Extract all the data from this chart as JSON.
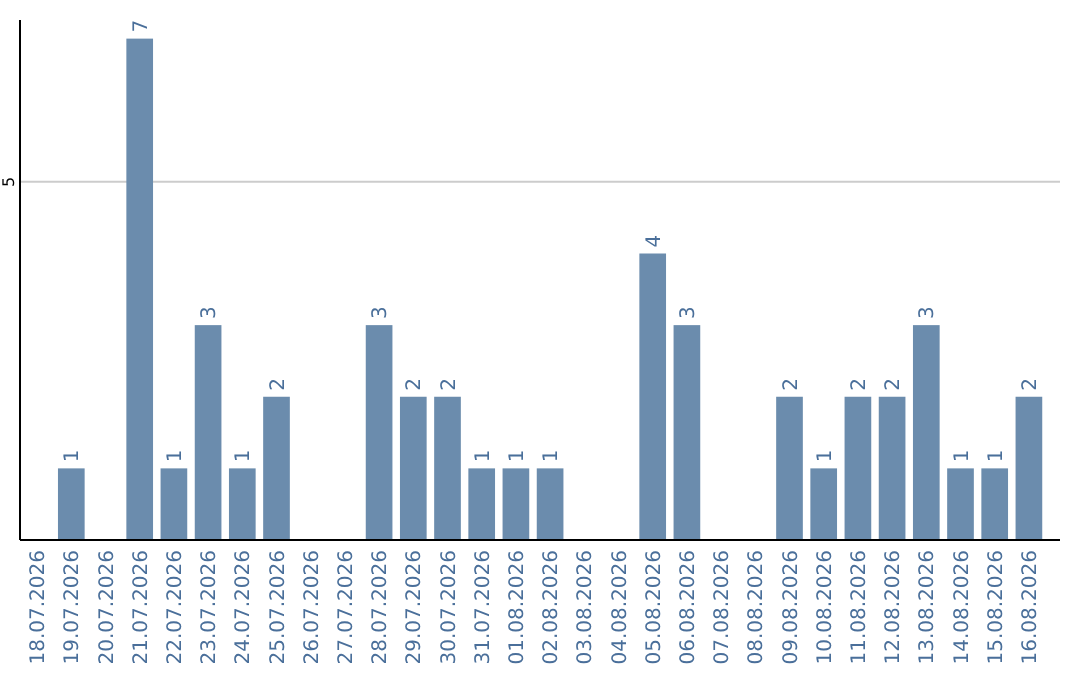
{
  "chart_data": {
    "type": "bar",
    "categories": [
      "18.07.2026",
      "19.07.2026",
      "20.07.2026",
      "21.07.2026",
      "22.07.2026",
      "23.07.2026",
      "24.07.2026",
      "25.07.2026",
      "26.07.2026",
      "27.07.2026",
      "28.07.2026",
      "29.07.2026",
      "30.07.2026",
      "31.07.2026",
      "01.08.2026",
      "02.08.2026",
      "03.08.2026",
      "04.08.2026",
      "05.08.2026",
      "06.08.2026",
      "07.08.2026",
      "08.08.2026",
      "09.08.2026",
      "10.08.2026",
      "11.08.2026",
      "12.08.2026",
      "13.08.2026",
      "14.08.2026",
      "15.08.2026",
      "16.08.2026"
    ],
    "values": [
      0,
      1,
      0,
      7,
      1,
      3,
      1,
      2,
      0,
      0,
      3,
      2,
      2,
      1,
      1,
      1,
      0,
      0,
      4,
      3,
      0,
      0,
      2,
      1,
      2,
      2,
      3,
      1,
      1,
      2
    ],
    "value_labels": [
      null,
      "1",
      null,
      "7",
      "1",
      "3",
      "1",
      "2",
      null,
      null,
      "3",
      "2",
      "2",
      "1",
      "1",
      "1",
      null,
      null,
      "4",
      "3",
      null,
      null,
      "2",
      "1",
      "2",
      "2",
      "3",
      "1",
      "1",
      "2"
    ],
    "color": "#6b8cad",
    "ylim": [
      0,
      7.26
    ],
    "yticks": [
      5
    ],
    "grid": "y"
  }
}
